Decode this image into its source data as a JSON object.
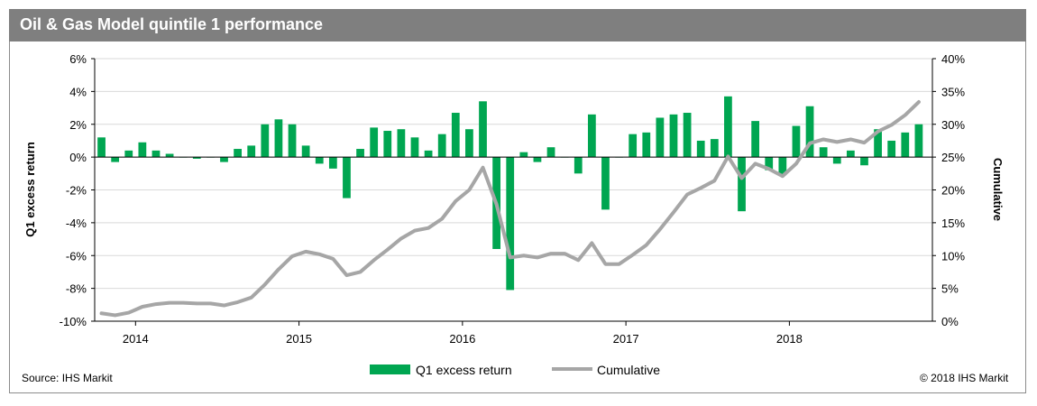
{
  "title": "Oil & Gas Model quintile 1 performance",
  "source": "Source: IHS Markit",
  "copyright": "© 2018 IHS Markit",
  "colors": {
    "bar": "#00a651",
    "line": "#a6a6a6",
    "title_bg": "#7f7f7f"
  },
  "chart_data": {
    "type": "bar+line",
    "xlabel": "",
    "ylabel": "Q1 excess return",
    "y2label": "Cumulative",
    "ylim": [
      -10,
      6
    ],
    "y2lim": [
      0,
      40
    ],
    "yticks": [
      "6%",
      "4%",
      "2%",
      "0%",
      "-2%",
      "-4%",
      "-6%",
      "-8%",
      "-10%"
    ],
    "y2ticks": [
      "40%",
      "35%",
      "30%",
      "25%",
      "20%",
      "15%",
      "10%",
      "5%",
      "0%"
    ],
    "year_labels": [
      "2014",
      "2015",
      "2016",
      "2017",
      "2018"
    ],
    "grid": "horizontal",
    "legend_position": "bottom",
    "series": [
      {
        "name": "Q1 excess return",
        "type": "bar",
        "values": [
          1.2,
          -0.3,
          0.4,
          0.9,
          0.4,
          0.2,
          0.0,
          -0.1,
          0.0,
          -0.3,
          0.5,
          0.7,
          2.0,
          2.3,
          2.0,
          0.7,
          -0.4,
          -0.7,
          -2.5,
          0.5,
          1.8,
          1.6,
          1.7,
          1.2,
          0.4,
          1.4,
          2.7,
          1.7,
          3.4,
          -5.6,
          -8.1,
          0.3,
          -0.3,
          0.6,
          0.0,
          -1.0,
          2.6,
          -3.2,
          0.0,
          1.4,
          1.5,
          2.4,
          2.6,
          2.7,
          1.0,
          1.1,
          3.7,
          -3.3,
          2.2,
          -0.8,
          -1.1,
          1.9,
          3.1,
          0.6,
          -0.4,
          0.4,
          -0.5,
          1.7,
          1.0,
          1.5,
          2.0
        ]
      },
      {
        "name": "Cumulative",
        "type": "line",
        "values": [
          1.2,
          0.9,
          1.3,
          2.2,
          2.6,
          2.8,
          2.8,
          2.7,
          2.7,
          2.4,
          2.9,
          3.6,
          5.6,
          7.9,
          9.9,
          10.6,
          10.2,
          9.5,
          7.0,
          7.5,
          9.3,
          10.9,
          12.6,
          13.8,
          14.2,
          15.6,
          18.3,
          20.0,
          23.4,
          17.8,
          9.7,
          10.0,
          9.7,
          10.3,
          10.3,
          9.3,
          11.9,
          8.7,
          8.7,
          10.1,
          11.6,
          14.0,
          16.6,
          19.3,
          20.3,
          21.4,
          25.1,
          21.8,
          24.0,
          23.2,
          22.1,
          24.0,
          27.1,
          27.7,
          27.3,
          27.7,
          27.2,
          28.9,
          29.9,
          31.4,
          33.4
        ]
      }
    ]
  }
}
